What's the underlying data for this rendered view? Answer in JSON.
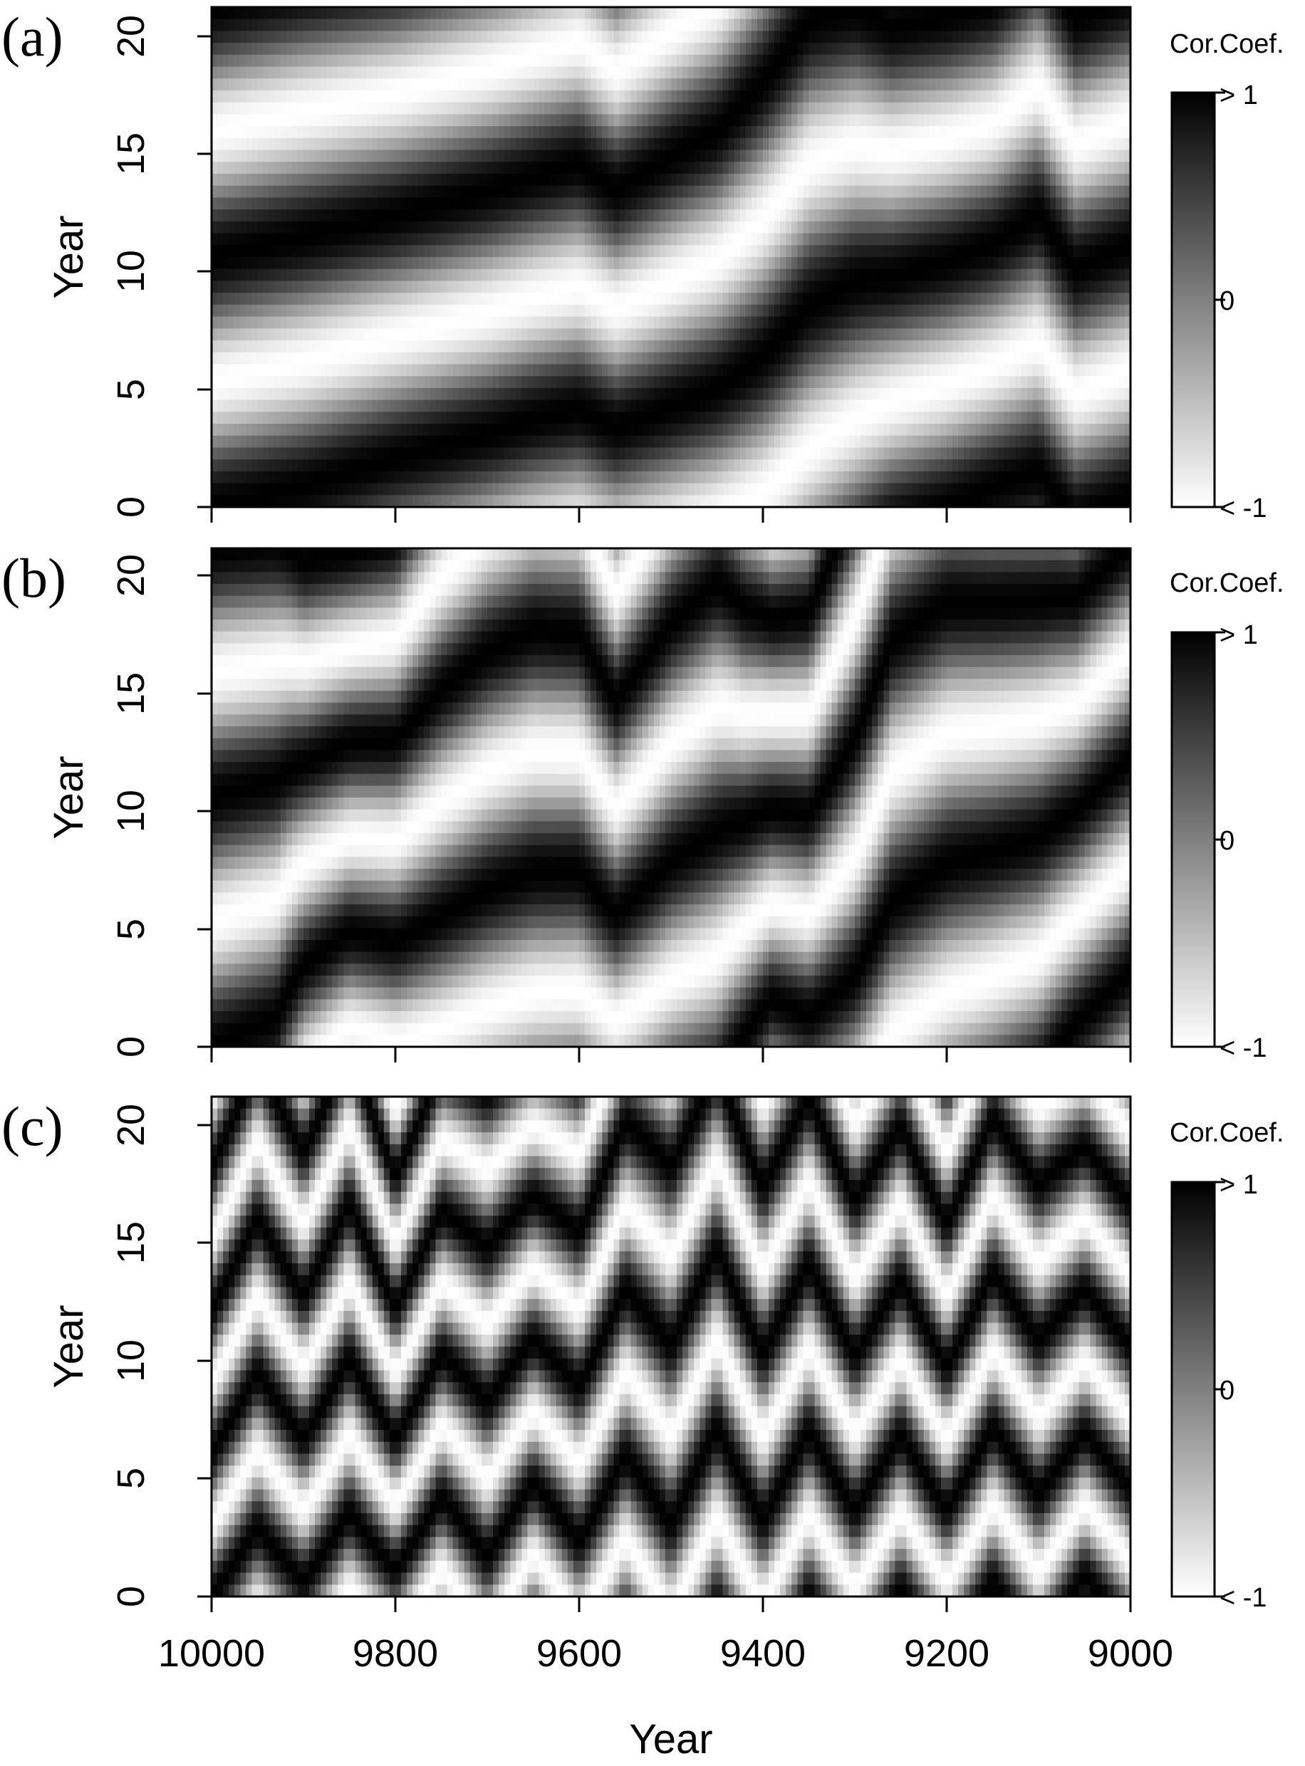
{
  "chart_data": {
    "type": "heatmap",
    "x_axis": {
      "label": "Year",
      "range": [
        10000,
        9000
      ],
      "reversed": true,
      "ticks": [
        10000,
        9800,
        9600,
        9400,
        9200,
        9000
      ],
      "tick_labels": [
        "10000",
        "9800",
        "9600",
        "9400",
        "9200",
        "9000"
      ]
    },
    "panels": [
      {
        "letter": "(a)",
        "type": "heatmap",
        "ylabel": "Year",
        "ylim": [
          0,
          21
        ],
        "yticks": [
          0,
          5,
          10,
          15,
          20
        ],
        "ytick_labels": [
          "0",
          "5",
          "10",
          "15",
          "20"
        ],
        "value_range": [
          -1,
          1
        ],
        "colorbar": {
          "title": "Cor.Coef.",
          "labels": [
            "> 1",
            "0",
            "< -1"
          ]
        },
        "period_profile": {
          "x": [
            10000,
            9900,
            9800,
            9700,
            9650,
            9600,
            9560,
            9500,
            9450,
            9400,
            9350,
            9300,
            9260,
            9200,
            9150,
            9100,
            9060,
            9000
          ],
          "period": [
            10.5,
            10.5,
            10.2,
            10.2,
            10.2,
            10.3,
            10.0,
            10.5,
            10.8,
            11.5,
            12.0,
            11.5,
            10.5,
            10.3,
            10.2,
            10.8,
            10.5,
            10.5
          ],
          "phase": [
            0.0,
            0.08,
            0.2,
            0.3,
            0.36,
            0.4,
            0.33,
            0.4,
            0.46,
            0.55,
            0.7,
            0.82,
            0.92,
            1.0,
            1.08,
            1.14,
            0.95,
            1.05
          ]
        }
      },
      {
        "letter": "(b)",
        "type": "heatmap",
        "ylabel": "Year",
        "ylim": [
          0,
          21
        ],
        "yticks": [
          0,
          5,
          10,
          15,
          20
        ],
        "ytick_labels": [
          "0",
          "5",
          "10",
          "15",
          "20"
        ],
        "value_range": [
          -1,
          1
        ],
        "colorbar": {
          "title": "Cor.Coef.",
          "labels": [
            "> 1",
            "0",
            "< -1"
          ]
        },
        "period_profile": {
          "x": [
            10000,
            9930,
            9900,
            9850,
            9800,
            9750,
            9700,
            9650,
            9600,
            9560,
            9500,
            9450,
            9420,
            9390,
            9350,
            9300,
            9260,
            9200,
            9150,
            9100,
            9060,
            9000
          ],
          "period": [
            10.5,
            10.0,
            8.5,
            8.0,
            8.5,
            9.5,
            10.0,
            10.2,
            10.0,
            9.0,
            10.0,
            10.5,
            9.0,
            8.0,
            8.5,
            10.0,
            11.0,
            11.0,
            10.5,
            10.0,
            9.0,
            9.0
          ],
          "phase": [
            0.0,
            0.12,
            0.4,
            0.6,
            0.52,
            0.58,
            0.66,
            0.72,
            0.74,
            0.62,
            0.78,
            0.86,
            1.05,
            1.25,
            1.15,
            1.3,
            1.55,
            1.7,
            1.78,
            1.88,
            2.1,
            2.35
          ]
        }
      },
      {
        "letter": "(c)",
        "type": "heatmap",
        "ylabel": "Year",
        "ylim": [
          0,
          21
        ],
        "yticks": [
          0,
          5,
          10,
          15,
          20
        ],
        "ytick_labels": [
          "0",
          "5",
          "10",
          "15",
          "20"
        ],
        "value_range": [
          -1,
          1
        ],
        "colorbar": {
          "title": "Cor.Coef.",
          "labels": [
            "> 1",
            "0",
            "< -1"
          ]
        },
        "period_profile": {
          "x": [
            10000,
            9950,
            9900,
            9850,
            9800,
            9750,
            9700,
            9650,
            9600,
            9550,
            9500,
            9450,
            9400,
            9350,
            9300,
            9250,
            9200,
            9150,
            9100,
            9050,
            9000
          ],
          "period": [
            6.0,
            6.5,
            6.0,
            6.5,
            5.5,
            6.0,
            6.5,
            6.0,
            6.5,
            7.0,
            7.5,
            7.5,
            7.0,
            7.0,
            6.5,
            6.5,
            6.0,
            6.5,
            6.5,
            6.0,
            6.0
          ],
          "phase": [
            0.0,
            0.45,
            0.1,
            0.55,
            0.2,
            0.7,
            0.25,
            0.8,
            0.35,
            0.85,
            0.4,
            0.95,
            0.45,
            1.0,
            0.55,
            1.05,
            0.6,
            1.1,
            0.65,
            1.15,
            0.75
          ]
        }
      }
    ]
  }
}
